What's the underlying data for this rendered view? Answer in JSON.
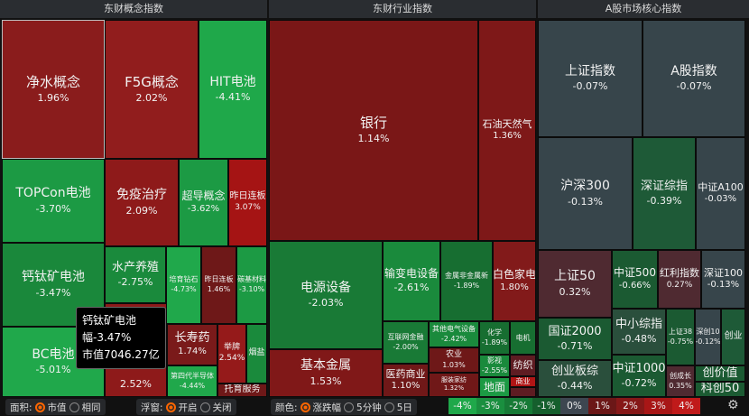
{
  "panels": [
    "东财概念指数",
    "东财行业指数",
    "A股市场核心指数"
  ],
  "tiles": [
    {
      "name": "净水概念",
      "change": "1.96%",
      "color": "#8a1c1c"
    },
    {
      "name": "F5G概念",
      "change": "2.02%",
      "color": "#911d1d"
    },
    {
      "name": "HIT电池",
      "change": "-4.41%",
      "color": "#1fa84a"
    },
    {
      "name": "TOPCon电池",
      "change": "-3.70%",
      "color": "#1c9a44"
    },
    {
      "name": "免疫治疗",
      "change": "2.09%",
      "color": "#8e1a1a"
    },
    {
      "name": "超导概念",
      "change": "-3.62%",
      "color": "#1c9a44"
    },
    {
      "name": "昨日连板",
      "change": "3.07%",
      "color": "#a51414"
    },
    {
      "name": "钙钛矿电池",
      "change": "-3.47%",
      "color": "#1a883b"
    },
    {
      "name": "BC电池",
      "change": "-5.01%",
      "color": "#20a84b"
    },
    {
      "name": "水产养殖",
      "change": "-2.75%",
      "color": "#1a8a3c"
    },
    {
      "name": "培育钻石",
      "change": "-4.73%",
      "color": "#20a84b"
    },
    {
      "name": "昨日连板",
      "change": "1.46%",
      "color": "#6e1818"
    },
    {
      "name": "碳基材料",
      "change": "-3.10%",
      "color": "#1c9a44"
    },
    {
      "name": "",
      "change": "2.52%",
      "color": "#8e1a1a"
    },
    {
      "name": "长寿药",
      "change": "1.74%",
      "color": "#7a1a1a"
    },
    {
      "name": "第四代半导体",
      "change": "-4.44%",
      "color": "#20a84b"
    },
    {
      "name": "举牌",
      "change": "2.54%",
      "color": "#951a1a"
    },
    {
      "name": "烟盐",
      "change": "",
      "color": "#1a8a3c"
    },
    {
      "name": "托育服务",
      "change": "",
      "color": "#6e1818"
    },
    {
      "name": "银行",
      "change": "1.14%",
      "color": "#7a1717"
    },
    {
      "name": "石油天然气",
      "change": "1.36%",
      "color": "#7e1818"
    },
    {
      "name": "电源设备",
      "change": "-2.03%",
      "color": "#197a36"
    },
    {
      "name": "基本金属",
      "change": "1.53%",
      "color": "#801818"
    },
    {
      "name": "输变电设备",
      "change": "-2.61%",
      "color": "#1a8a3c"
    },
    {
      "name": "金属非金属新",
      "change": "-1.89%",
      "color": "#176e31"
    },
    {
      "name": "白色家电",
      "change": "1.80%",
      "color": "#821a1a"
    },
    {
      "name": "互联网金融",
      "change": "-2.00%",
      "color": "#197a36"
    },
    {
      "name": "其他电气设备",
      "change": "-2.42%",
      "color": "#1a8a3c"
    },
    {
      "name": "农业",
      "change": "1.03%",
      "color": "#6e1818"
    },
    {
      "name": "服装家纺",
      "change": "1.32%",
      "color": "#701818"
    },
    {
      "name": "医药商业",
      "change": "1.10%",
      "color": "#701818"
    },
    {
      "name": "化学",
      "change": "-1.89%",
      "color": "#176e31"
    },
    {
      "name": "电机",
      "change": "",
      "color": "#176e31"
    },
    {
      "name": "影视",
      "change": "-2.55%",
      "color": "#1a8a3c"
    },
    {
      "name": "地面",
      "change": "",
      "color": "#1c9a44"
    },
    {
      "name": "纺织",
      "change": "",
      "color": "#5e1c22"
    },
    {
      "name": "商业",
      "change": "",
      "color": "#b01515"
    },
    {
      "name": "",
      "change": "",
      "color": "#5e1c22"
    },
    {
      "name": "上证指数",
      "change": "-0.07%",
      "color": "#37454b"
    },
    {
      "name": "A股指数",
      "change": "-0.07%",
      "color": "#37454b"
    },
    {
      "name": "沪深300",
      "change": "-0.13%",
      "color": "#37454b"
    },
    {
      "name": "深证综指",
      "change": "-0.39%",
      "color": "#1e5a37"
    },
    {
      "name": "中证A100",
      "change": "-0.03%",
      "color": "#37454b"
    },
    {
      "name": "上证50",
      "change": "0.32%",
      "color": "#4f2a31"
    },
    {
      "name": "中证500",
      "change": "-0.66%",
      "color": "#1b5a32"
    },
    {
      "name": "红利指数",
      "change": "0.27%",
      "color": "#4f2a31"
    },
    {
      "name": "深证100",
      "change": "-0.13%",
      "color": "#37454b"
    },
    {
      "name": "国证2000",
      "change": "-0.71%",
      "color": "#1b5a32"
    },
    {
      "name": "创业板综",
      "change": "-0.44%",
      "color": "#2a4f3c"
    },
    {
      "name": "中小综指",
      "change": "-0.48%",
      "color": "#2a4f3c"
    },
    {
      "name": "中证1000",
      "change": "-0.72%",
      "color": "#1b5a32"
    },
    {
      "name": "上证38",
      "change": "-0.75%",
      "color": "#1b5a32"
    },
    {
      "name": "深创10",
      "change": "-0.12%",
      "color": "#37454b"
    },
    {
      "name": "创业",
      "change": "",
      "color": "#1e5a37"
    },
    {
      "name": "创成长",
      "change": "0.35%",
      "color": "#4f2a31"
    },
    {
      "name": "创价值",
      "change": "",
      "color": "#1b5a32"
    },
    {
      "name": "科创50",
      "change": "",
      "color": "#1b5a32"
    }
  ],
  "tooltip": {
    "name": "钙钛矿电池",
    "change": "幅-3.47%",
    "cap": "市值7046.27亿"
  },
  "controls": {
    "area_label": "面积:",
    "area_opts": [
      "市值",
      "相同"
    ],
    "float_label": "浮窗:",
    "float_opts": [
      "开启",
      "关闭"
    ],
    "color_label": "颜色:",
    "color_opts": [
      "涨跌幅",
      "5分钟",
      "5日"
    ]
  },
  "legend": [
    {
      "label": "-4%",
      "color": "#1fa84a"
    },
    {
      "label": "-3%",
      "color": "#1a8f3f"
    },
    {
      "label": "-2%",
      "color": "#177a36"
    },
    {
      "label": "-1%",
      "color": "#155f2d"
    },
    {
      "label": "0%",
      "color": "#3d4650"
    },
    {
      "label": "1%",
      "color": "#6b1717"
    },
    {
      "label": "2%",
      "color": "#861818"
    },
    {
      "label": "3%",
      "color": "#a81616"
    },
    {
      "label": "4%",
      "color": "#c01a1a"
    }
  ]
}
